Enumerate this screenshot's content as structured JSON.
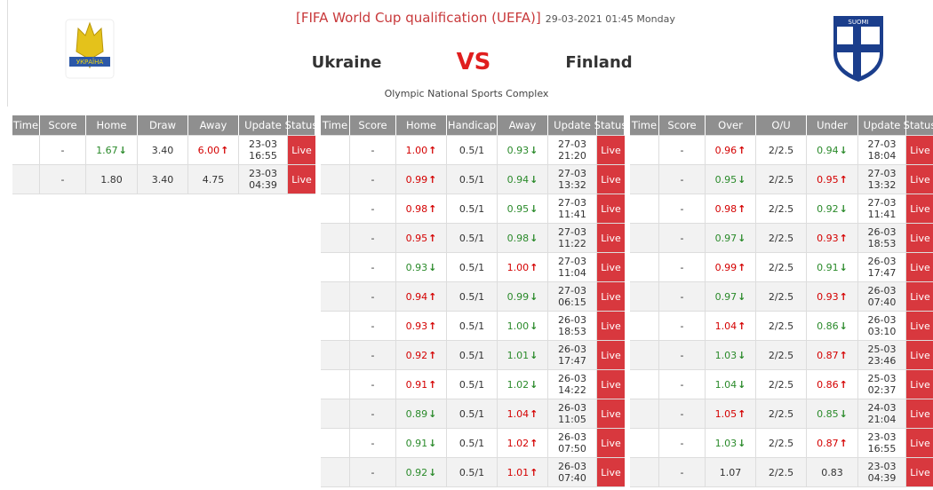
{
  "header": {
    "competition": "[FIFA World Cup qualification (UEFA)]",
    "datetime": "29-03-2021 01:45 Monday",
    "home_team": "Ukraine",
    "vs": "VS",
    "away_team": "Finland",
    "venue": "Olympic National Sports Complex",
    "home_logo_text": "УКРАЇНА",
    "away_logo_text": "SUOMI"
  },
  "tables": [
    {
      "columns": [
        "Time",
        "Score",
        "Home",
        "Draw",
        "Away",
        "Update",
        "Status"
      ],
      "rows": [
        [
          "-",
          {
            "text": "1.67",
            "trend": "down"
          },
          "3.40",
          {
            "text": "6.00",
            "trend": "up"
          },
          [
            "23-03",
            "16:55"
          ],
          "Live"
        ],
        [
          "-",
          "1.80",
          "3.40",
          "4.75",
          [
            "23-03",
            "04:39"
          ],
          "Live"
        ]
      ]
    },
    {
      "columns": [
        "Time",
        "Score",
        "Home",
        "Handicap",
        "Away",
        "Update",
        "Status"
      ],
      "rows": [
        [
          "-",
          {
            "text": "1.00",
            "trend": "up"
          },
          "0.5/1",
          {
            "text": "0.93",
            "trend": "down"
          },
          [
            "27-03",
            "21:20"
          ],
          "Live"
        ],
        [
          "-",
          {
            "text": "0.99",
            "trend": "up"
          },
          "0.5/1",
          {
            "text": "0.94",
            "trend": "down"
          },
          [
            "27-03",
            "13:32"
          ],
          "Live"
        ],
        [
          "-",
          {
            "text": "0.98",
            "trend": "up"
          },
          "0.5/1",
          {
            "text": "0.95",
            "trend": "down"
          },
          [
            "27-03",
            "11:41"
          ],
          "Live"
        ],
        [
          "-",
          {
            "text": "0.95",
            "trend": "up"
          },
          "0.5/1",
          {
            "text": "0.98",
            "trend": "down"
          },
          [
            "27-03",
            "11:22"
          ],
          "Live"
        ],
        [
          "-",
          {
            "text": "0.93",
            "trend": "down"
          },
          "0.5/1",
          {
            "text": "1.00",
            "trend": "up"
          },
          [
            "27-03",
            "11:04"
          ],
          "Live"
        ],
        [
          "-",
          {
            "text": "0.94",
            "trend": "up"
          },
          "0.5/1",
          {
            "text": "0.99",
            "trend": "down"
          },
          [
            "27-03",
            "06:15"
          ],
          "Live"
        ],
        [
          "-",
          {
            "text": "0.93",
            "trend": "up"
          },
          "0.5/1",
          {
            "text": "1.00",
            "trend": "down"
          },
          [
            "26-03",
            "18:53"
          ],
          "Live"
        ],
        [
          "-",
          {
            "text": "0.92",
            "trend": "up"
          },
          "0.5/1",
          {
            "text": "1.01",
            "trend": "down"
          },
          [
            "26-03",
            "17:47"
          ],
          "Live"
        ],
        [
          "-",
          {
            "text": "0.91",
            "trend": "up"
          },
          "0.5/1",
          {
            "text": "1.02",
            "trend": "down"
          },
          [
            "26-03",
            "14:22"
          ],
          "Live"
        ],
        [
          "-",
          {
            "text": "0.89",
            "trend": "down"
          },
          "0.5/1",
          {
            "text": "1.04",
            "trend": "up"
          },
          [
            "26-03",
            "11:05"
          ],
          "Live"
        ],
        [
          "-",
          {
            "text": "0.91",
            "trend": "down"
          },
          "0.5/1",
          {
            "text": "1.02",
            "trend": "up"
          },
          [
            "26-03",
            "07:50"
          ],
          "Live"
        ],
        [
          "-",
          {
            "text": "0.92",
            "trend": "down"
          },
          "0.5/1",
          {
            "text": "1.01",
            "trend": "up"
          },
          [
            "26-03",
            "07:40"
          ],
          "Live"
        ]
      ]
    },
    {
      "columns": [
        "Time",
        "Score",
        "Over",
        "O/U",
        "Under",
        "Update",
        "Status"
      ],
      "rows": [
        [
          "-",
          {
            "text": "0.96",
            "trend": "up"
          },
          "2/2.5",
          {
            "text": "0.94",
            "trend": "down"
          },
          [
            "27-03",
            "18:04"
          ],
          "Live"
        ],
        [
          "-",
          {
            "text": "0.95",
            "trend": "down"
          },
          "2/2.5",
          {
            "text": "0.95",
            "trend": "up"
          },
          [
            "27-03",
            "13:32"
          ],
          "Live"
        ],
        [
          "-",
          {
            "text": "0.98",
            "trend": "up"
          },
          "2/2.5",
          {
            "text": "0.92",
            "trend": "down"
          },
          [
            "27-03",
            "11:41"
          ],
          "Live"
        ],
        [
          "-",
          {
            "text": "0.97",
            "trend": "down"
          },
          "2/2.5",
          {
            "text": "0.93",
            "trend": "up"
          },
          [
            "26-03",
            "18:53"
          ],
          "Live"
        ],
        [
          "-",
          {
            "text": "0.99",
            "trend": "up"
          },
          "2/2.5",
          {
            "text": "0.91",
            "trend": "down"
          },
          [
            "26-03",
            "17:47"
          ],
          "Live"
        ],
        [
          "-",
          {
            "text": "0.97",
            "trend": "down"
          },
          "2/2.5",
          {
            "text": "0.93",
            "trend": "up"
          },
          [
            "26-03",
            "07:40"
          ],
          "Live"
        ],
        [
          "-",
          {
            "text": "1.04",
            "trend": "up"
          },
          "2/2.5",
          {
            "text": "0.86",
            "trend": "down"
          },
          [
            "26-03",
            "03:10"
          ],
          "Live"
        ],
        [
          "-",
          {
            "text": "1.03",
            "trend": "down"
          },
          "2/2.5",
          {
            "text": "0.87",
            "trend": "up"
          },
          [
            "25-03",
            "23:46"
          ],
          "Live"
        ],
        [
          "-",
          {
            "text": "1.04",
            "trend": "down"
          },
          "2/2.5",
          {
            "text": "0.86",
            "trend": "up"
          },
          [
            "25-03",
            "02:37"
          ],
          "Live"
        ],
        [
          "-",
          {
            "text": "1.05",
            "trend": "up"
          },
          "2/2.5",
          {
            "text": "0.85",
            "trend": "down"
          },
          [
            "24-03",
            "21:04"
          ],
          "Live"
        ],
        [
          "-",
          {
            "text": "1.03",
            "trend": "down"
          },
          "2/2.5",
          {
            "text": "0.87",
            "trend": "up"
          },
          [
            "23-03",
            "16:55"
          ],
          "Live"
        ],
        [
          "-",
          "1.07",
          "2/2.5",
          "0.83",
          [
            "23-03",
            "04:39"
          ],
          "Live"
        ]
      ]
    }
  ]
}
